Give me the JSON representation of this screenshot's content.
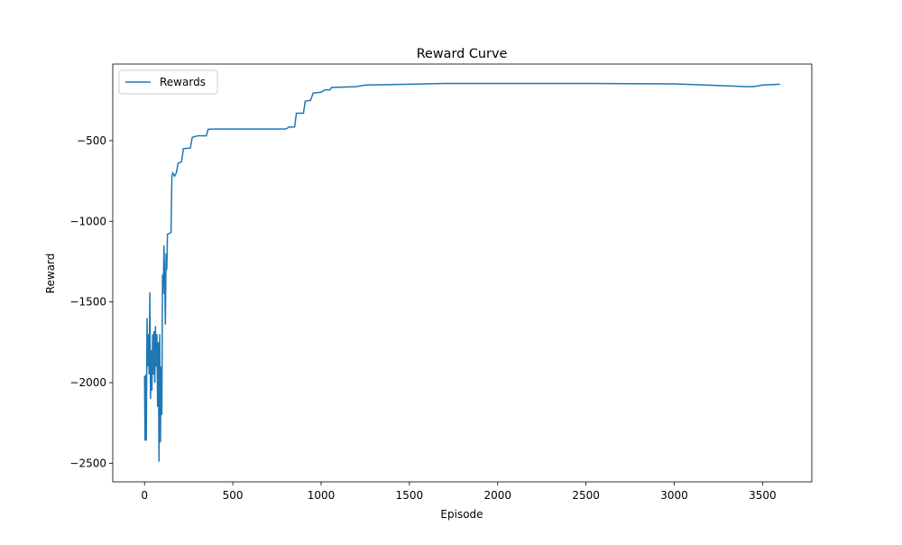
{
  "chart_data": {
    "type": "line",
    "title": "Reward Curve",
    "xlabel": "Episode",
    "ylabel": "Reward",
    "x": [
      0,
      3,
      6,
      10,
      14,
      18,
      22,
      26,
      30,
      34,
      38,
      42,
      46,
      50,
      54,
      58,
      62,
      66,
      70,
      74,
      78,
      82,
      86,
      90,
      94,
      98,
      102,
      106,
      110,
      114,
      118,
      122,
      126,
      130,
      150,
      155,
      160,
      170,
      180,
      190,
      210,
      220,
      260,
      270,
      300,
      350,
      360,
      400,
      800,
      820,
      850,
      860,
      900,
      910,
      940,
      955,
      1000,
      1020,
      1050,
      1060,
      1200,
      1250,
      1500,
      1700,
      2500,
      3000,
      3300,
      3400,
      3450,
      3500,
      3599
    ],
    "series": [
      {
        "name": "Rewards",
        "color": "#1f77b4",
        "values": [
          -1960,
          -2360,
          -1950,
          -2360,
          -1600,
          -1900,
          -1700,
          -1950,
          -1440,
          -2100,
          -1800,
          -2050,
          -1700,
          -1950,
          -1680,
          -2000,
          -1650,
          -1900,
          -1700,
          -2150,
          -1750,
          -2490,
          -1700,
          -2370,
          -1900,
          -2200,
          -1330,
          -1450,
          -1150,
          -1350,
          -1640,
          -1200,
          -1300,
          -1080,
          -1070,
          -720,
          -700,
          -720,
          -700,
          -640,
          -630,
          -550,
          -545,
          -480,
          -470,
          -470,
          -430,
          -428,
          -428,
          -415,
          -415,
          -330,
          -330,
          -255,
          -250,
          -205,
          -200,
          -185,
          -185,
          -170,
          -165,
          -155,
          -150,
          -145,
          -145,
          -148,
          -160,
          -165,
          -165,
          -155,
          -150
        ]
      }
    ],
    "xlim": [
      -180,
      3779
    ],
    "ylim": [
      -2615,
      -25
    ],
    "xticks": [
      0,
      500,
      1000,
      1500,
      2000,
      2500,
      3000,
      3500
    ],
    "yticks": [
      {
        "value": -2500,
        "label": "−2500"
      },
      {
        "value": -2000,
        "label": "−2000"
      },
      {
        "value": -1500,
        "label": "−1500"
      },
      {
        "value": -1000,
        "label": "−1000"
      },
      {
        "value": -500,
        "label": "−500"
      }
    ],
    "legend": "upper left"
  }
}
